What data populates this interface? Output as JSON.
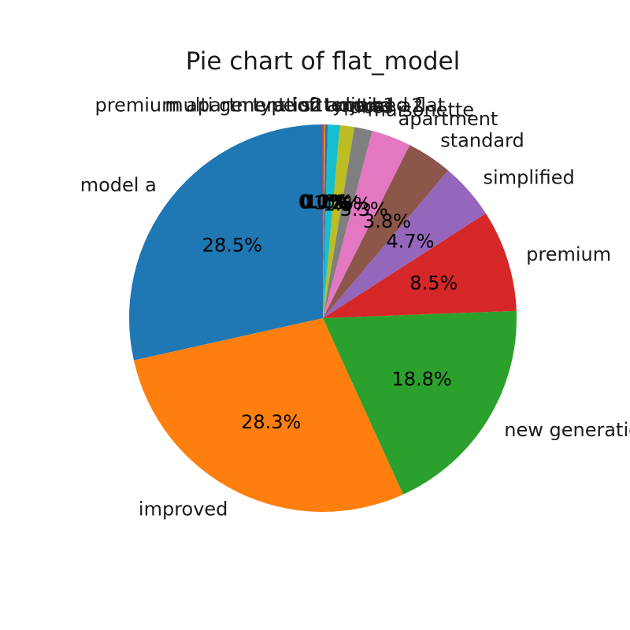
{
  "chart_data": {
    "type": "pie",
    "title": "Pie chart of flat_model",
    "start_angle": "90° (top), counter-clockwise",
    "categories": [
      "model a",
      "improved",
      "new generation",
      "premium",
      "simplified",
      "standard",
      "apartment",
      "maisonette",
      "dbss",
      "model a2",
      "adjoined flat",
      "type s1",
      "terrace",
      "type s2",
      "premium apartment loft",
      "multi generation"
    ],
    "values": [
      28.5,
      28.3,
      18.8,
      8.5,
      4.7,
      3.8,
      3.3,
      1.5,
      1.2,
      1.0,
      0.2,
      0.1,
      0.1,
      0.0,
      0.0,
      0.0
    ],
    "percent_labels": [
      "28.5%",
      "28.3%",
      "18.8%",
      "8.5%",
      "4.7%",
      "3.8%",
      "3.3%",
      "1.5%",
      "1.2%",
      "1.0%",
      "0.2%",
      "0.1%",
      "0.1%",
      "0.0%",
      "0.0%",
      "0.0%"
    ],
    "colors": [
      "#1f77b4",
      "#ff7f0e",
      "#2ca02c",
      "#d62728",
      "#9467bd",
      "#8c564b",
      "#e377c2",
      "#7f7f7f",
      "#bcbd22",
      "#17becf",
      "#1f77b4",
      "#ff7f0e",
      "#2ca02c",
      "#d62728",
      "#9467bd",
      "#8c564b"
    ]
  }
}
